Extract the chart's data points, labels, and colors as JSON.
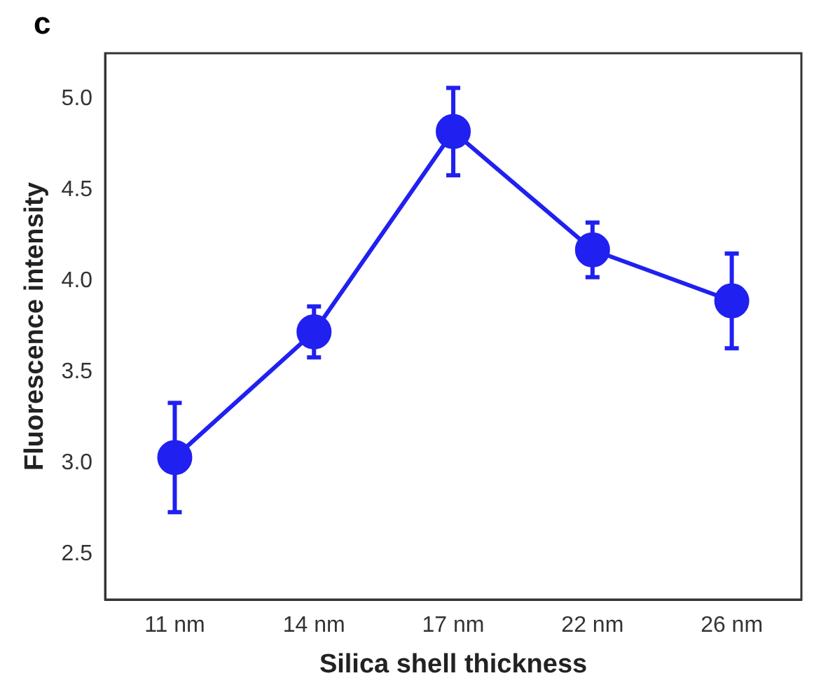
{
  "chart_data": {
    "type": "line",
    "xlabel": "Silica shell thickness",
    "ylabel": "Fluorescence intensity",
    "annotations": [
      "c"
    ],
    "categories": [
      "11 nm",
      "14 nm",
      "17 nm",
      "22 nm",
      "26 nm"
    ],
    "series": [
      {
        "color": "#2020f0",
        "values": [
          3.03,
          3.72,
          4.82,
          4.17,
          3.89
        ],
        "errors": [
          0.3,
          0.14,
          0.24,
          0.15,
          0.26
        ]
      }
    ],
    "ylim": [
      2.25,
      5.25
    ],
    "yticks": [
      2.5,
      {
        "value": 3,
        "label": "3.0"
      },
      3.5,
      {
        "value": 4,
        "label": "4.0"
      },
      4.5,
      {
        "value": 5,
        "label": "5.0"
      }
    ],
    "marker": "circle",
    "line_style": "solid",
    "grid": false,
    "legend": false
  }
}
